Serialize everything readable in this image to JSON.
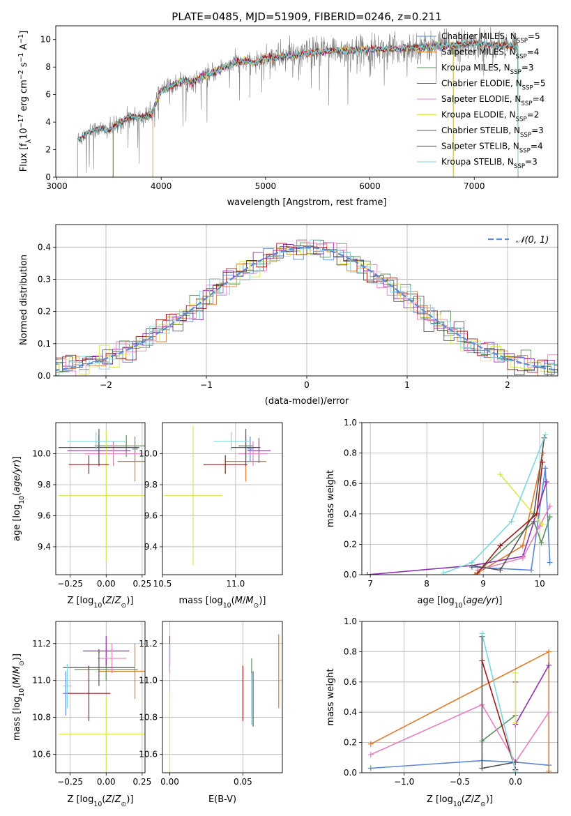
{
  "figure": {
    "suptitle": "PLATE=0485, MJD=51909, FIBERID=0246, z=0.211"
  },
  "model_colors": {
    "chabrier_miles": "#5b86d6",
    "salpeter_miles": "#e07b2a",
    "kroupa_miles": "#5a8f5a",
    "chabrier_elodie": "#8d2fb0",
    "salpeter_elodie": "#e87fbf",
    "kroupa_elodie": "#d8e84a",
    "chabrier_stelib": "#555555",
    "salpeter_stelib": "#a01818",
    "kroupa_stelib": "#7ed6dd",
    "data": "#7f7f7f",
    "normal_curve": "#5b8ad6"
  },
  "chart_data": [
    {
      "id": "spectrum",
      "type": "line",
      "xlabel": "wavelength [Angstrom, rest frame]",
      "ylabel": "Flux [f_λ10^-17 erg cm^-2 s^-1 A^-1]",
      "xlim": [
        2990,
        7800
      ],
      "ylim": [
        0,
        11
      ],
      "xticks": [
        3000,
        4000,
        5000,
        6000,
        7000
      ],
      "yticks": [
        0,
        2,
        4,
        6,
        8,
        10
      ],
      "grid": false,
      "legend_position": "right",
      "legend": [
        {
          "key": "chabrier_miles",
          "label": "Chabrier MILES, N",
          "sub": "SSP",
          "tail": "=5"
        },
        {
          "key": "salpeter_miles",
          "label": "Salpeter MILES, N",
          "sub": "SSP",
          "tail": "=4"
        },
        {
          "key": "kroupa_miles",
          "label": "Kroupa MILES, N",
          "sub": "SSP",
          "tail": "=3"
        },
        {
          "key": "chabrier_elodie",
          "label": "Chabrier ELODIE, N",
          "sub": "SSP",
          "tail": "=5"
        },
        {
          "key": "salpeter_elodie",
          "label": "Salpeter ELODIE, N",
          "sub": "SSP",
          "tail": "=4"
        },
        {
          "key": "kroupa_elodie",
          "label": "Kroupa ELODIE, N",
          "sub": "SSP",
          "tail": "=2"
        },
        {
          "key": "chabrier_stelib",
          "label": "Chabrier STELIB, N",
          "sub": "SSP",
          "tail": "=3"
        },
        {
          "key": "salpeter_stelib",
          "label": "Salpeter STELIB, N",
          "sub": "SSP",
          "tail": "=4"
        },
        {
          "key": "kroupa_stelib",
          "label": "Kroupa STELIB, N",
          "sub": "SSP",
          "tail": "=3"
        }
      ],
      "continuum": [
        [
          3200,
          2.7
        ],
        [
          3300,
          3.3
        ],
        [
          3400,
          3.5
        ],
        [
          3500,
          3.4
        ],
        [
          3600,
          3.9
        ],
        [
          3700,
          4.4
        ],
        [
          3800,
          4.3
        ],
        [
          3900,
          4.5
        ],
        [
          4000,
          6.3
        ],
        [
          4100,
          6.6
        ],
        [
          4200,
          7.0
        ],
        [
          4300,
          6.9
        ],
        [
          4400,
          7.3
        ],
        [
          4500,
          7.6
        ],
        [
          4600,
          8.0
        ],
        [
          4700,
          8.3
        ],
        [
          4800,
          8.4
        ],
        [
          4900,
          8.3
        ],
        [
          5000,
          8.7
        ],
        [
          5100,
          8.7
        ],
        [
          5200,
          8.8
        ],
        [
          5400,
          9.0
        ],
        [
          5600,
          9.2
        ],
        [
          5800,
          9.2
        ],
        [
          6000,
          9.3
        ],
        [
          6200,
          9.3
        ],
        [
          6400,
          9.4
        ],
        [
          6600,
          9.5
        ],
        [
          6800,
          9.6
        ],
        [
          7000,
          9.7
        ],
        [
          7200,
          9.6
        ],
        [
          7400,
          9.5
        ]
      ],
      "model_ranges": {
        "chabrier_miles": [
          3540,
          7420
        ],
        "salpeter_miles": [
          3540,
          7420
        ],
        "kroupa_miles": [
          3540,
          7420
        ],
        "chabrier_elodie": [
          3920,
          6800
        ],
        "salpeter_elodie": [
          3920,
          6800
        ],
        "kroupa_elodie": [
          3920,
          6800
        ],
        "chabrier_stelib": [
          3200,
          7420
        ],
        "salpeter_stelib": [
          3200,
          7420
        ],
        "kroupa_stelib": [
          3200,
          7420
        ]
      }
    },
    {
      "id": "residuals",
      "type": "line",
      "xlabel": "(data-model)/error",
      "ylabel": "Normed distribution",
      "xlim": [
        -2.5,
        2.5
      ],
      "ylim": [
        0,
        0.47
      ],
      "xticks": [
        -2,
        -1,
        0,
        1,
        2
      ],
      "yticks": [
        0.0,
        0.1,
        0.2,
        0.3,
        0.4
      ],
      "grid": true,
      "legend_position": "top-right",
      "normal_label": "𝒩(0, 1)"
    },
    {
      "id": "age_vs_Z",
      "type": "scatter",
      "xlabel": "Z [log10(Z/Z⊙)]",
      "ylabel": "age [log10(age/yr)]",
      "xlim": [
        -0.35,
        0.27
      ],
      "ylim": [
        9.22,
        10.2
      ],
      "xticks": [
        -0.25,
        0.0,
        0.25
      ],
      "yticks": [
        9.4,
        9.6,
        9.8,
        10.0
      ],
      "grid": true,
      "points": [
        {
          "model": "chabrier_miles",
          "x": 0.2,
          "y": 10.03,
          "xerr": 0.02,
          "yerr": 0.08
        },
        {
          "model": "salpeter_miles",
          "x": 0.2,
          "y": 9.95,
          "xerr": 0.12,
          "yerr": 0.13
        },
        {
          "model": "kroupa_miles",
          "x": 0.14,
          "y": 10.05,
          "xerr": 0.22,
          "yerr": 0.07
        },
        {
          "model": "chabrier_elodie",
          "x": -0.05,
          "y": 10.02,
          "xerr": 0.22,
          "yerr": 0.1
        },
        {
          "model": "salpeter_elodie",
          "x": 0.05,
          "y": 10.0,
          "xerr": 0.2,
          "yerr": 0.08
        },
        {
          "model": "kroupa_elodie",
          "x": 0.0,
          "y": 9.73,
          "xerr": 0.33,
          "yerr": 0.42
        },
        {
          "model": "chabrier_stelib",
          "x": -0.05,
          "y": 10.04,
          "xerr": 0.28,
          "yerr": 0.12
        },
        {
          "model": "salpeter_stelib",
          "x": -0.12,
          "y": 9.93,
          "xerr": 0.14,
          "yerr": 0.06
        },
        {
          "model": "kroupa_stelib",
          "x": -0.07,
          "y": 10.08,
          "xerr": 0.2,
          "yerr": 0.06
        }
      ]
    },
    {
      "id": "age_vs_mass",
      "type": "scatter",
      "xlabel": "mass [log10(M/M⊙)]",
      "xlim": [
        10.5,
        11.32
      ],
      "ylim": [
        9.22,
        10.2
      ],
      "xticks": [
        10.5,
        11.0
      ],
      "yticks": [
        9.4,
        9.6,
        9.8,
        10.0
      ],
      "grid": true,
      "points": [
        {
          "model": "chabrier_miles",
          "x": 11.1,
          "y": 10.03,
          "xerr": 0.02,
          "yerr": 0.08
        },
        {
          "model": "salpeter_miles",
          "x": 11.07,
          "y": 9.95,
          "xerr": 0.14,
          "yerr": 0.13
        },
        {
          "model": "kroupa_miles",
          "x": 11.07,
          "y": 10.05,
          "xerr": 0.05,
          "yerr": 0.07
        },
        {
          "model": "chabrier_elodie",
          "x": 11.16,
          "y": 10.02,
          "xerr": 0.08,
          "yerr": 0.08
        },
        {
          "model": "salpeter_elodie",
          "x": 11.12,
          "y": 10.0,
          "xerr": 0.1,
          "yerr": 0.08
        },
        {
          "model": "kroupa_elodie",
          "x": 10.71,
          "y": 9.73,
          "xerr": 0.2,
          "yerr": 0.45
        },
        {
          "model": "chabrier_stelib",
          "x": 11.07,
          "y": 10.04,
          "xerr": 0.1,
          "yerr": 0.12
        },
        {
          "model": "salpeter_stelib",
          "x": 10.93,
          "y": 9.93,
          "xerr": 0.15,
          "yerr": 0.06
        },
        {
          "model": "kroupa_stelib",
          "x": 10.97,
          "y": 10.08,
          "xerr": 0.12,
          "yerr": 0.06
        }
      ]
    },
    {
      "id": "massweight_vs_age",
      "type": "line",
      "xlabel": "age [log10(age/yr)]",
      "ylabel": "mass weight",
      "xlim": [
        6.85,
        10.32
      ],
      "ylim": [
        0,
        1.0
      ],
      "xticks": [
        7,
        8,
        9,
        10
      ],
      "yticks": [
        0.0,
        0.2,
        0.4,
        0.6,
        0.8,
        1.0
      ],
      "grid": true,
      "series": [
        {
          "model": "chabrier_miles",
          "points": [
            [
              8.8,
              0.05
            ],
            [
              9.85,
              0.03
            ],
            [
              10.1,
              0.7
            ],
            [
              10.18,
              0.08
            ]
          ]
        },
        {
          "model": "salpeter_miles",
          "points": [
            [
              8.85,
              0.0
            ],
            [
              9.7,
              0.19
            ],
            [
              10.06,
              0.8
            ]
          ]
        },
        {
          "model": "kroupa_miles",
          "points": [
            [
              9.0,
              0.05
            ],
            [
              9.9,
              0.35
            ],
            [
              10.03,
              0.21
            ],
            [
              10.18,
              0.38
            ]
          ]
        },
        {
          "model": "chabrier_elodie",
          "points": [
            [
              6.95,
              0.0
            ],
            [
              8.8,
              0.06
            ],
            [
              9.7,
              0.12
            ],
            [
              10.12,
              0.61
            ]
          ]
        },
        {
          "model": "salpeter_elodie",
          "points": [
            [
              8.9,
              0.03
            ],
            [
              9.7,
              0.11
            ],
            [
              10.0,
              0.32
            ],
            [
              10.18,
              0.45
            ]
          ]
        },
        {
          "model": "kroupa_elodie",
          "points": [
            [
              9.3,
              0.66
            ],
            [
              10.05,
              0.33
            ]
          ]
        },
        {
          "model": "chabrier_stelib",
          "points": [
            [
              8.8,
              0.06
            ],
            [
              9.3,
              0.03
            ],
            [
              9.9,
              0.4
            ],
            [
              10.08,
              0.9
            ]
          ]
        },
        {
          "model": "salpeter_stelib",
          "points": [
            [
              8.9,
              0.01
            ],
            [
              9.3,
              0.19
            ],
            [
              9.95,
              0.4
            ],
            [
              10.05,
              0.74
            ]
          ]
        },
        {
          "model": "kroupa_stelib",
          "points": [
            [
              8.3,
              0.01
            ],
            [
              8.8,
              0.08
            ],
            [
              9.5,
              0.35
            ],
            [
              10.1,
              0.92
            ]
          ]
        }
      ]
    },
    {
      "id": "mass_vs_Z",
      "type": "scatter",
      "xlabel": "Z [log10(Z/Z⊙)]",
      "ylabel": "mass [log10(M/M⊙)]",
      "xlim": [
        -0.35,
        0.27
      ],
      "ylim": [
        10.5,
        11.32
      ],
      "xticks": [
        -0.25,
        0.0,
        0.25
      ],
      "yticks": [
        10.6,
        10.8,
        11.0,
        11.2
      ],
      "grid": true,
      "points": [
        {
          "model": "chabrier_miles",
          "x": -0.28,
          "y": 10.93,
          "xerr": 0.02,
          "yerr": 0.12
        },
        {
          "model": "salpeter_miles",
          "x": 0.2,
          "y": 11.05,
          "xerr": 0.25,
          "yerr": 0.15
        },
        {
          "model": "kroupa_miles",
          "x": 0.0,
          "y": 11.06,
          "xerr": 0.22,
          "yerr": 0.06
        },
        {
          "model": "chabrier_elodie",
          "x": 0.0,
          "y": 11.16,
          "xerr": 0.16,
          "yerr": 0.08
        },
        {
          "model": "salpeter_elodie",
          "x": 0.04,
          "y": 11.12,
          "xerr": 0.1,
          "yerr": 0.08
        },
        {
          "model": "kroupa_elodie",
          "x": 0.0,
          "y": 10.71,
          "xerr": 0.33,
          "yerr": 0.2
        },
        {
          "model": "chabrier_stelib",
          "x": -0.05,
          "y": 11.07,
          "xerr": 0.25,
          "yerr": 0.1
        },
        {
          "model": "salpeter_stelib",
          "x": -0.12,
          "y": 10.93,
          "xerr": 0.15,
          "yerr": 0.15
        },
        {
          "model": "kroupa_stelib",
          "x": -0.27,
          "y": 10.97,
          "xerr": 0.03,
          "yerr": 0.12
        }
      ]
    },
    {
      "id": "mass_vs_ebv",
      "type": "scatter",
      "xlabel": "E(B-V)",
      "xlim": [
        -0.005,
        0.077
      ],
      "ylim": [
        10.5,
        11.32
      ],
      "xticks": [
        0.0,
        0.05
      ],
      "yticks": [
        10.6,
        10.8,
        11.0,
        11.2
      ],
      "grid": true,
      "points": [
        {
          "model": "chabrier_miles",
          "x": 0.056,
          "y": 10.93,
          "yerr": 0.12
        },
        {
          "model": "salpeter_miles",
          "x": 0.0745,
          "y": 11.05,
          "yerr": 0.2
        },
        {
          "model": "kroupa_miles",
          "x": 0.056,
          "y": 11.06,
          "yerr": 0.06
        },
        {
          "model": "chabrier_elodie",
          "x": 0.0,
          "y": 11.16,
          "yerr": 0.08
        },
        {
          "model": "salpeter_elodie",
          "x": 0.0,
          "y": 11.12,
          "yerr": 0.08
        },
        {
          "model": "kroupa_elodie",
          "x": 0.0,
          "y": 10.71,
          "yerr": 0.22
        },
        {
          "model": "chabrier_stelib",
          "x": 0.057,
          "y": 10.9,
          "yerr": 0.15
        },
        {
          "model": "salpeter_stelib",
          "x": 0.05,
          "y": 10.93,
          "yerr": 0.15
        },
        {
          "model": "kroupa_stelib",
          "x": 0.056,
          "y": 10.9,
          "yerr": 0.14
        }
      ]
    },
    {
      "id": "massweight_vs_Z",
      "type": "line",
      "xlabel": "Z [log10(Z/Z⊙)]",
      "ylabel": "mass weight",
      "xlim": [
        -1.38,
        0.38
      ],
      "ylim": [
        0,
        1.0
      ],
      "xticks": [
        -1.0,
        -0.5,
        0.0
      ],
      "yticks": [
        0.0,
        0.2,
        0.4,
        0.6,
        0.8,
        1.0
      ],
      "grid": true,
      "series": [
        {
          "model": "chabrier_miles",
          "points": [
            [
              -1.3,
              0.03
            ],
            [
              -0.3,
              0.08
            ],
            [
              0.0,
              0.07
            ],
            [
              0.3,
              0.05
            ]
          ]
        },
        {
          "model": "salpeter_miles",
          "points": [
            [
              -1.3,
              0.19
            ],
            [
              0.3,
              0.8
            ],
            [
              0.3,
              0.01
            ]
          ]
        },
        {
          "model": "kroupa_miles",
          "points": [
            [
              -0.3,
              0.21
            ],
            [
              0.0,
              0.38
            ]
          ]
        },
        {
          "model": "chabrier_elodie",
          "points": [
            [
              0.0,
              0.6
            ],
            [
              0.0,
              0.32
            ],
            [
              0.3,
              0.71
            ]
          ]
        },
        {
          "model": "salpeter_elodie",
          "points": [
            [
              -1.3,
              0.12
            ],
            [
              -0.3,
              0.45
            ],
            [
              0.0,
              0.07
            ],
            [
              0.3,
              0.4
            ]
          ]
        },
        {
          "model": "kroupa_elodie",
          "points": [
            [
              0.0,
              0.66
            ],
            [
              0.0,
              0.33
            ]
          ]
        },
        {
          "model": "chabrier_stelib",
          "points": [
            [
              -0.3,
              0.9
            ],
            [
              -0.3,
              0.03
            ],
            [
              0.0,
              0.07
            ]
          ]
        },
        {
          "model": "salpeter_stelib",
          "points": [
            [
              -0.3,
              0.74
            ],
            [
              0.0,
              0.02
            ]
          ]
        },
        {
          "model": "kroupa_stelib",
          "points": [
            [
              -0.3,
              0.92
            ],
            [
              0.0,
              0.01
            ]
          ]
        }
      ]
    }
  ]
}
